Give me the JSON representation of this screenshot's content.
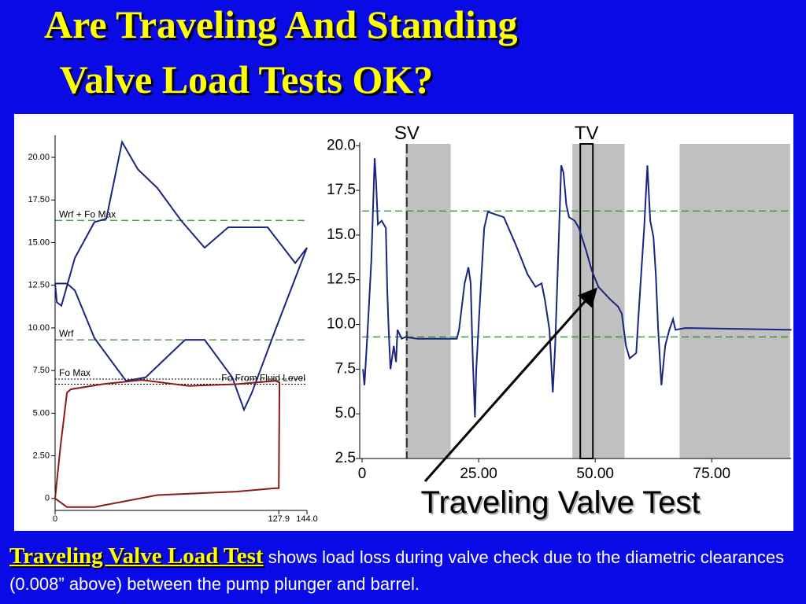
{
  "slide": {
    "title": [
      "Are Traveling And Standing",
      " Valve Load Tests OK?"
    ],
    "annotation": "Traveling Valve Test",
    "caption": {
      "term": "Traveling Valve Load Test",
      "text": "shows load loss during valve check due to the diametric clearances (0.008” above) between the pump plunger and barrel."
    }
  },
  "chart_data": [
    {
      "type": "line",
      "xlim": [
        0,
        144
      ],
      "ylim": [
        -0.7,
        21.2
      ],
      "xticks": [
        0,
        127.9,
        {
          "value": 144,
          "label": "144.0"
        }
      ],
      "yticks": [
        0,
        {
          "value": 2.5,
          "label": "2.50"
        },
        {
          "value": 5,
          "label": "5.00"
        },
        {
          "value": 7.5,
          "label": "7.50"
        },
        {
          "value": 10,
          "label": "10.00"
        },
        {
          "value": 12.5,
          "label": "12.50"
        },
        {
          "value": 15,
          "label": "15.00"
        },
        {
          "value": 17.5,
          "label": "17.50"
        },
        {
          "value": 20,
          "label": "20.00"
        }
      ],
      "reference_lines": [
        {
          "label": "Wrf + Fo Max",
          "value": 16.3,
          "color": "#2e8b2e",
          "align": "left"
        },
        {
          "label": "Wrf",
          "value": 9.3,
          "color": "#2e8b2e",
          "align": "left"
        },
        {
          "label": "Fo Max",
          "value": 7.0,
          "color": "#000000",
          "align": "left"
        },
        {
          "label": "Fo From Fluid Level",
          "value": 6.7,
          "color": "#000000",
          "align": "right"
        }
      ],
      "series": [
        {
          "color": "#1a2580",
          "x": [
            0,
            1,
            3.6,
            11.3,
            22.5,
            29.3,
            38.3,
            47.3,
            58.5,
            72,
            85.5,
            99,
            121.5,
            137.3,
            144,
            139.5,
            126,
            112.5,
            108,
            101.3,
            85.5,
            74.3,
            63,
            51.8,
            40.5,
            22.5,
            11.3,
            6.8,
            0
          ],
          "values": [
            12.6,
            11.5,
            11.3,
            14.1,
            16.2,
            16.4,
            20.9,
            19.3,
            18.2,
            16.3,
            14.7,
            15.9,
            15.9,
            13.8,
            14.7,
            13.5,
            9.9,
            6.2,
            5.2,
            7.1,
            9.3,
            9.3,
            8.2,
            7.1,
            6.9,
            9.4,
            12.2,
            12.6,
            12.6
          ]
        },
        {
          "color": "#8b1a1a",
          "x": [
            0,
            3,
            6.8,
            9,
            27,
            49.5,
            76.5,
            103.5,
            126,
            128.3,
            127.9,
            126,
            103.5,
            58.5,
            22.5,
            6.8,
            0
          ],
          "values": [
            0,
            3,
            6.2,
            6.4,
            6.7,
            6.95,
            6.6,
            6.7,
            6.9,
            6.8,
            0.6,
            0.6,
            0.4,
            0.2,
            -0.5,
            -0.5,
            0
          ]
        }
      ]
    },
    {
      "type": "line",
      "xlim": [
        0,
        92
      ],
      "ylim": [
        2.5,
        20.1
      ],
      "xticks": [
        0,
        {
          "value": 25,
          "label": "25.00"
        },
        {
          "value": 50,
          "label": "50.00"
        },
        {
          "value": 75,
          "label": "75.00"
        }
      ],
      "yticks": [
        {
          "value": 2.5,
          "label": "2.5"
        },
        {
          "value": 5,
          "label": "5.0"
        },
        {
          "value": 7.5,
          "label": "7.5"
        },
        {
          "value": 10,
          "label": "10.0"
        },
        {
          "value": 12.5,
          "label": "12.5"
        },
        {
          "value": 15,
          "label": "15.0"
        },
        {
          "value": 17.5,
          "label": "17.5"
        },
        {
          "value": 20,
          "label": "20.0"
        }
      ],
      "bands": [
        {
          "x0": 9.3,
          "x1": 19.0
        },
        {
          "x0": 45.1,
          "x1": 56.3
        },
        {
          "x0": 68.1,
          "x1": 91.8
        }
      ],
      "markers": [
        {
          "label": "SV",
          "x": 9.6,
          "kind": "dashed"
        },
        {
          "label": "TV",
          "x0": 46.8,
          "x1": 49.5,
          "kind": "box"
        }
      ],
      "reference_lines": [
        {
          "value": 16.35,
          "color": "#2e8b2e"
        },
        {
          "value": 9.3,
          "color": "#2e8b2e"
        }
      ],
      "series": [
        {
          "color": "#1a2580",
          "x": [
            0.2,
            0.5,
            1.2,
            2.0,
            2.7,
            3.0,
            3.4,
            4.2,
            5.1,
            5.4,
            5.7,
            6.1,
            6.8,
            7.3,
            7.6,
            8.5,
            9.3,
            11.8,
            20.3,
            20.8,
            22.0,
            22.8,
            23.3,
            23.7,
            24.2,
            24.5,
            25.3,
            26.2,
            27.0,
            30.4,
            32.9,
            35.5,
            37.2,
            38.5,
            39.2,
            40.2,
            40.9,
            41.4,
            42.2,
            42.7,
            43.2,
            43.8,
            44.4,
            45.6,
            46.5,
            48.1,
            49.3,
            50.7,
            53.2,
            54.9,
            55.7,
            56.6,
            57.4,
            58.8,
            59.5,
            60.5,
            61.2,
            61.8,
            62.5,
            63.0,
            63.5,
            64.2,
            65.0,
            65.9,
            66.7,
            67.2,
            69.3,
            92.1
          ],
          "values": [
            7.5,
            6.6,
            9.7,
            13.6,
            19.3,
            18.0,
            15.6,
            15.8,
            15.4,
            11.9,
            9.7,
            7.5,
            8.8,
            7.9,
            9.7,
            9.2,
            9.3,
            9.2,
            9.2,
            9.7,
            12.3,
            13.2,
            12.3,
            8.4,
            4.8,
            7.5,
            11.4,
            15.4,
            16.3,
            16.0,
            14.5,
            12.8,
            12.1,
            12.3,
            11.4,
            9.7,
            6.2,
            8.8,
            14.9,
            18.9,
            18.5,
            16.7,
            16.0,
            15.8,
            15.4,
            14.1,
            13.0,
            12.1,
            11.4,
            11.0,
            10.6,
            8.8,
            8.1,
            8.4,
            11.4,
            15.4,
            18.9,
            15.8,
            14.9,
            12.8,
            9.7,
            6.6,
            8.8,
            9.7,
            10.3,
            9.7,
            9.8,
            9.7
          ]
        }
      ]
    }
  ]
}
